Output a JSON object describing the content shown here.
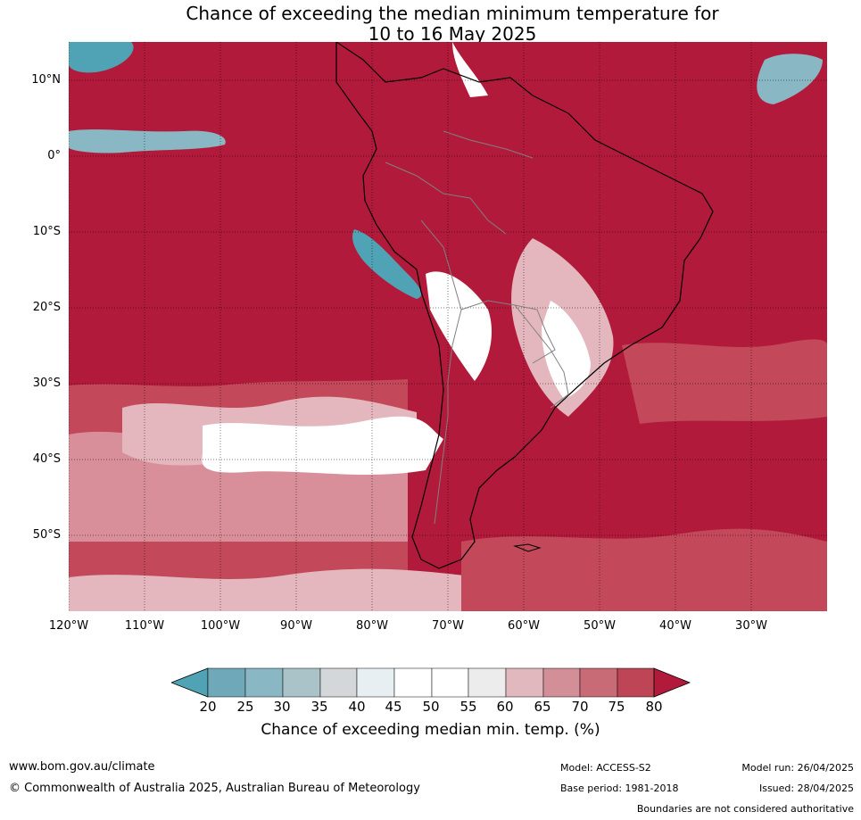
{
  "title": {
    "line1": "Chance of exceeding the median minimum temperature for",
    "line2": "10 to 16 May 2025"
  },
  "map": {
    "latitude_labels": [
      "10°N",
      "0°",
      "10°S",
      "20°S",
      "30°S",
      "40°S",
      "50°S"
    ],
    "longitude_labels": [
      "120°W",
      "110°W",
      "100°W",
      "90°W",
      "80°W",
      "70°W",
      "60°W",
      "50°W",
      "40°W",
      "30°W"
    ],
    "colors": {
      "high": "#b11a3a",
      "mid_high": "#c2485a",
      "mid": "#d88f9a",
      "low_mid": "#e3b7bd",
      "neutral": "#ffffff",
      "cool": "#4fa3b5",
      "land_outline": "#000000",
      "borders": "#808080"
    }
  },
  "colorbar": {
    "ticks": [
      "20",
      "25",
      "30",
      "35",
      "40",
      "45",
      "50",
      "55",
      "60",
      "65",
      "70",
      "75",
      "80"
    ],
    "colors": [
      "#4fa3b5",
      "#6fa9b9",
      "#8ab7c4",
      "#aac3c9",
      "#d3d7d9",
      "#e8eff2",
      "#ffffff",
      "#ffffff",
      "#ececec",
      "#e0b8bd",
      "#d38f98",
      "#c96b77",
      "#bd4555",
      "#b11a3a"
    ],
    "label": "Chance of exceeding median min. temp. (%)"
  },
  "footer": {
    "website": "www.bom.gov.au/climate",
    "copyright": "© Commonwealth of Australia 2025, Australian Bureau of Meteorology",
    "model": "Model: ACCESS-S2",
    "base_period": "Base period: 1981-2018",
    "model_run": "Model run: 26/04/2025",
    "issued": "Issued: 28/04/2025",
    "disclaimer": "Boundaries are not considered authoritative"
  }
}
